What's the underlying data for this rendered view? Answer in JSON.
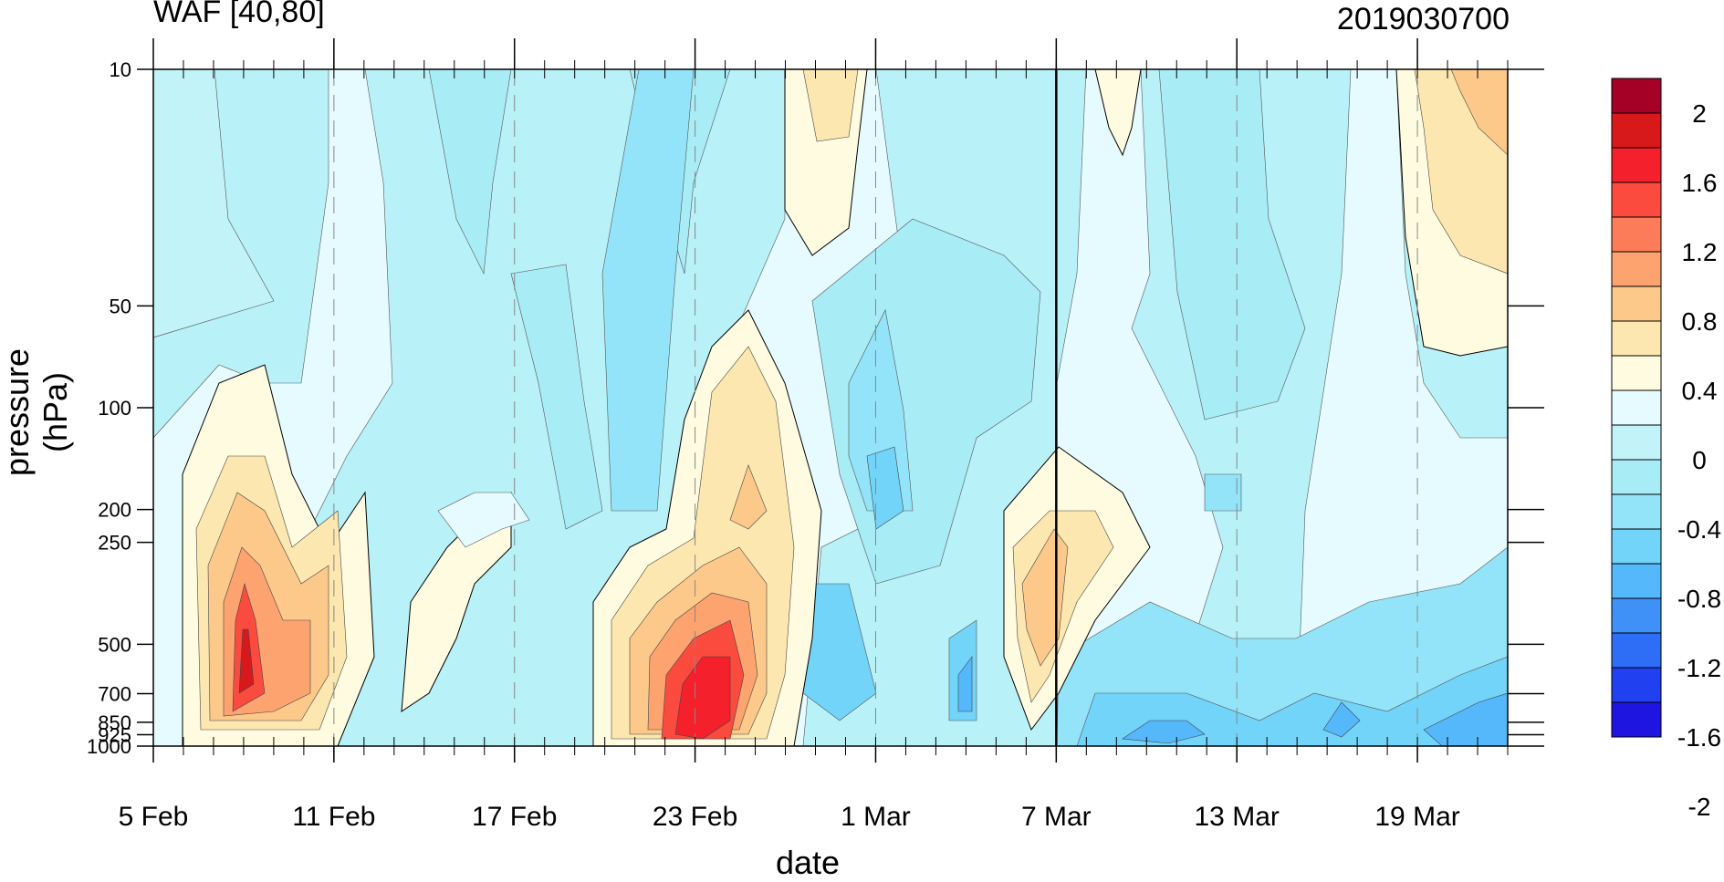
{
  "chart_data": {
    "type": "heatmap",
    "title": "WAF [40,80]",
    "subtitle": "2019030700",
    "xlabel": "date",
    "ylabel": "pressure (hPa)",
    "x_ticks": [
      "5 Feb",
      "11 Feb",
      "17 Feb",
      "23 Feb",
      "1 Mar",
      "7 Mar",
      "13 Mar",
      "19 Mar"
    ],
    "y_ticks": [
      "10",
      "50",
      "100",
      "200",
      "250",
      "500",
      "700",
      "850",
      "925",
      "1000"
    ],
    "y_scale": "log",
    "ylim": [
      1000,
      10
    ],
    "marked_date": "7 Mar",
    "colorbar": {
      "labels": [
        "2",
        "1.6",
        "1.2",
        "0.8",
        "0.4",
        "0",
        "-0.4",
        "-0.8",
        "-1.2",
        "-1.6",
        "-2"
      ],
      "colors": [
        "#a50026",
        "#d7191c",
        "#f4202c",
        "#fb4b3f",
        "#fc7c5a",
        "#fca36f",
        "#fdc98a",
        "#fde7b0",
        "#fffbe0",
        "#e6fbff",
        "#c2f3f8",
        "#a8ecf6",
        "#93e4f8",
        "#72d4f9",
        "#55b8fb",
        "#3f91f7",
        "#2e6df5",
        "#2140f0",
        "#1e16e0"
      ]
    },
    "highlights": [
      {
        "date": "8 Feb",
        "level": "500",
        "value": 1.6
      },
      {
        "date": "23 Feb",
        "level": "700",
        "value": 1.6
      },
      {
        "date": "1 Mar",
        "level": "200",
        "value": -0.8
      },
      {
        "date": "4 Mar",
        "level": "700",
        "value": -1.2
      }
    ]
  }
}
